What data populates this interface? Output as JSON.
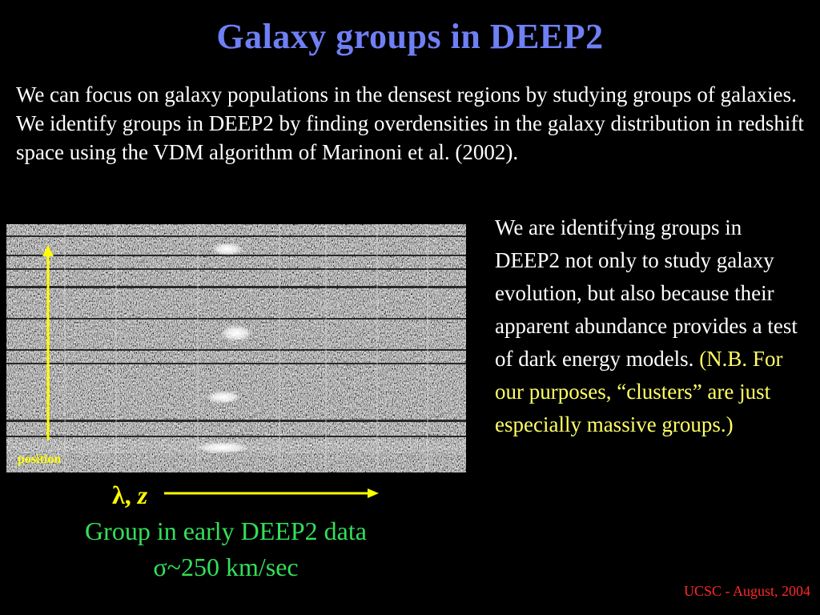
{
  "title": "Galaxy groups in DEEP2",
  "intro": "We can focus on galaxy populations in the densest regions by studying groups of galaxies. We identify groups in DEEP2 by finding overdensities in the galaxy distribution in redshift space using the VDM algorithm of Marinoni et al. (2002).",
  "figure": {
    "y_label": "position",
    "x_label_lambda": "λ,",
    "x_label_z": "z",
    "caption_line1": "Group in early DEEP2 data",
    "caption_line2": "σ~250 km/sec",
    "arrow_color": "#ffff00"
  },
  "side_text": {
    "main": "We are identifying groups in DEEP2 not only to study galaxy evolution, but also because their apparent abundance provides a test of dark energy models.",
    "note": "(N.B. For our purposes, “clusters” are just especially massive groups.)"
  },
  "footer": "UCSC - August, 2004",
  "colors": {
    "title": "#6f7ff4",
    "caption": "#33e05a",
    "note": "#ffff66",
    "footer": "#ff2a2a"
  }
}
